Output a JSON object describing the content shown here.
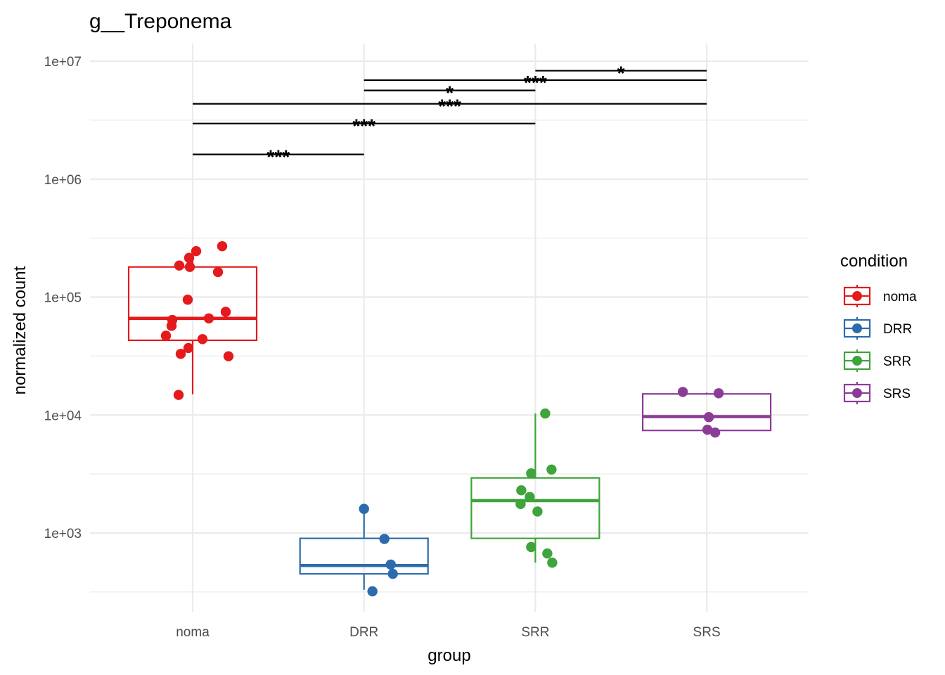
{
  "chart_data": {
    "type": "box",
    "title": "g__Treponema",
    "xlabel": "group",
    "ylabel": "normalized count",
    "yscale": "log10",
    "ylim": [
      250,
      13000000
    ],
    "yticks": [
      1000,
      10000,
      100000,
      1000000,
      10000000
    ],
    "ytick_labels": [
      "1e+03",
      "1e+04",
      "1e+05",
      "1e+06",
      "1e+07"
    ],
    "categories": [
      "noma",
      "DRR",
      "SRR",
      "SRS"
    ],
    "grid": true,
    "legend": {
      "title": "condition",
      "placement": "right",
      "entries": [
        {
          "label": "noma",
          "color": "#E41A1C"
        },
        {
          "label": "DRR",
          "color": "#2C6BAC"
        },
        {
          "label": "SRR",
          "color": "#3FA43B"
        },
        {
          "label": "SRS",
          "color": "#8B3D96"
        }
      ]
    },
    "boxes": [
      {
        "group": "noma",
        "color": "#E41A1C",
        "whisker_low": 15000,
        "q1": 43000,
        "median": 66000,
        "q3": 180000,
        "whisker_high": 250000,
        "points": [
          270000,
          245000,
          215000,
          185000,
          180000,
          163000,
          95000,
          75000,
          66000,
          64000,
          57000,
          47000,
          44000,
          37000,
          33000,
          31500,
          14800
        ]
      },
      {
        "group": "DRR",
        "color": "#2C6BAC",
        "whisker_low": 330,
        "q1": 450,
        "median": 530,
        "q3": 900,
        "whisker_high": 1600,
        "points": [
          1600,
          890,
          540,
          450,
          320
        ]
      },
      {
        "group": "SRR",
        "color": "#3FA43B",
        "whisker_low": 560,
        "q1": 900,
        "median": 1880,
        "q3": 2930,
        "whisker_high": 10300,
        "points": [
          10300,
          3450,
          3200,
          2300,
          2020,
          1760,
          1520,
          760,
          670,
          560
        ]
      },
      {
        "group": "SRS",
        "color": "#8B3D96",
        "whisker_low": 7100,
        "q1": 7400,
        "median": 9700,
        "q3": 15100,
        "whisker_high": 15500,
        "points": [
          15700,
          15300,
          9600,
          7500,
          7100
        ]
      }
    ],
    "significance": [
      {
        "from": "noma",
        "to": "DRR",
        "label": "***",
        "y": 1620000
      },
      {
        "from": "noma",
        "to": "SRR",
        "label": "***",
        "y": 2960000
      },
      {
        "from": "noma",
        "to": "SRS",
        "label": "***",
        "y": 4350000
      },
      {
        "from": "DRR",
        "to": "SRR",
        "label": "*",
        "y": 5650000
      },
      {
        "from": "DRR",
        "to": "SRS",
        "label": "***",
        "y": 6900000
      },
      {
        "from": "SRR",
        "to": "SRS",
        "label": "*",
        "y": 8300000
      }
    ]
  }
}
